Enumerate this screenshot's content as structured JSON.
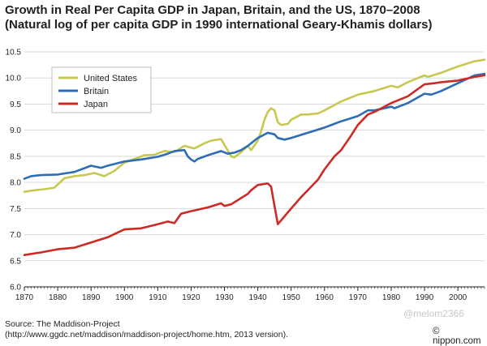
{
  "title_line1": "Growth in Real Per Capita GDP in Japan, Britain, and the US, 1870–2008",
  "title_line2": "(Natural log of per capita GDP in 1990 international Geary-Khamis dollars)",
  "source_line1": "Source: The Maddison-Project",
  "source_line2": "(http://www.ggdc.net/maddison/maddison-project/home.htm, 2013 version).",
  "watermark": "@melom2366",
  "credit": "© nippon.com",
  "chart_data": {
    "type": "line",
    "xlim": [
      1870,
      2008
    ],
    "ylim": [
      6.0,
      10.5
    ],
    "x_ticks": [
      1870,
      1880,
      1890,
      1900,
      1910,
      1920,
      1930,
      1940,
      1950,
      1960,
      1970,
      1980,
      1990,
      2000
    ],
    "y_ticks": [
      6.0,
      6.5,
      7.0,
      7.5,
      8.0,
      8.5,
      9.0,
      9.5,
      10.0,
      10.5
    ],
    "y_tick_labels": [
      "6.0",
      "6.5",
      "7.0",
      "7.5",
      "8.0",
      "8.5",
      "9.0",
      "9.5",
      "10.0",
      "10.5"
    ],
    "grid": "horizontal",
    "legend_position": "top-left",
    "series": [
      {
        "name": "United States",
        "color": "#c8c850",
        "x": [
          1870,
          1873,
          1876,
          1879,
          1882,
          1885,
          1888,
          1891,
          1894,
          1897,
          1900,
          1903,
          1906,
          1909,
          1912,
          1915,
          1918,
          1921,
          1924,
          1926,
          1929,
          1930,
          1932,
          1933,
          1935,
          1937,
          1938,
          1940,
          1941,
          1942,
          1943,
          1944,
          1945,
          1946,
          1947,
          1949,
          1950,
          1953,
          1955,
          1958,
          1960,
          1965,
          1970,
          1975,
          1980,
          1982,
          1985,
          1990,
          1991,
          1995,
          2000,
          2005,
          2008
        ],
        "y": [
          7.82,
          7.85,
          7.87,
          7.9,
          8.08,
          8.12,
          8.14,
          8.18,
          8.12,
          8.22,
          8.38,
          8.45,
          8.52,
          8.53,
          8.6,
          8.58,
          8.7,
          8.65,
          8.75,
          8.8,
          8.83,
          8.72,
          8.5,
          8.48,
          8.58,
          8.7,
          8.62,
          8.8,
          8.98,
          9.2,
          9.35,
          9.42,
          9.38,
          9.15,
          9.1,
          9.12,
          9.2,
          9.3,
          9.3,
          9.32,
          9.38,
          9.55,
          9.68,
          9.75,
          9.85,
          9.82,
          9.92,
          10.05,
          10.02,
          10.1,
          10.22,
          10.32,
          10.35
        ]
      },
      {
        "name": "Britain",
        "color": "#2e6cb5",
        "x": [
          1870,
          1872,
          1875,
          1880,
          1885,
          1890,
          1893,
          1895,
          1900,
          1905,
          1910,
          1913,
          1915,
          1918,
          1919,
          1920,
          1921,
          1922,
          1925,
          1929,
          1931,
          1933,
          1935,
          1937,
          1940,
          1943,
          1945,
          1946,
          1948,
          1950,
          1955,
          1960,
          1965,
          1970,
          1973,
          1975,
          1980,
          1981,
          1985,
          1990,
          1992,
          1995,
          2000,
          2005,
          2008
        ],
        "y": [
          8.07,
          8.12,
          8.14,
          8.15,
          8.2,
          8.32,
          8.28,
          8.32,
          8.4,
          8.44,
          8.49,
          8.55,
          8.6,
          8.62,
          8.5,
          8.44,
          8.4,
          8.45,
          8.52,
          8.6,
          8.55,
          8.57,
          8.62,
          8.7,
          8.85,
          8.95,
          8.92,
          8.85,
          8.82,
          8.85,
          8.95,
          9.05,
          9.17,
          9.27,
          9.38,
          9.38,
          9.45,
          9.42,
          9.52,
          9.7,
          9.68,
          9.75,
          9.9,
          10.05,
          10.08
        ]
      },
      {
        "name": "Japan",
        "color": "#cc2a24",
        "x": [
          1870,
          1875,
          1880,
          1885,
          1890,
          1895,
          1900,
          1905,
          1910,
          1913,
          1915,
          1917,
          1920,
          1925,
          1929,
          1930,
          1932,
          1935,
          1937,
          1938,
          1940,
          1943,
          1944,
          1945,
          1946,
          1948,
          1950,
          1953,
          1955,
          1958,
          1960,
          1963,
          1965,
          1968,
          1970,
          1973,
          1975,
          1980,
          1985,
          1990,
          1993,
          1995,
          2000,
          2005,
          2008
        ],
        "y": [
          6.61,
          6.66,
          6.72,
          6.75,
          6.85,
          6.95,
          7.1,
          7.12,
          7.2,
          7.25,
          7.22,
          7.4,
          7.45,
          7.52,
          7.6,
          7.55,
          7.58,
          7.7,
          7.78,
          7.85,
          7.95,
          7.98,
          7.92,
          7.55,
          7.2,
          7.35,
          7.5,
          7.72,
          7.85,
          8.05,
          8.25,
          8.5,
          8.62,
          8.9,
          9.1,
          9.3,
          9.35,
          9.52,
          9.65,
          9.88,
          9.9,
          9.92,
          9.95,
          10.02,
          10.05
        ]
      }
    ]
  }
}
